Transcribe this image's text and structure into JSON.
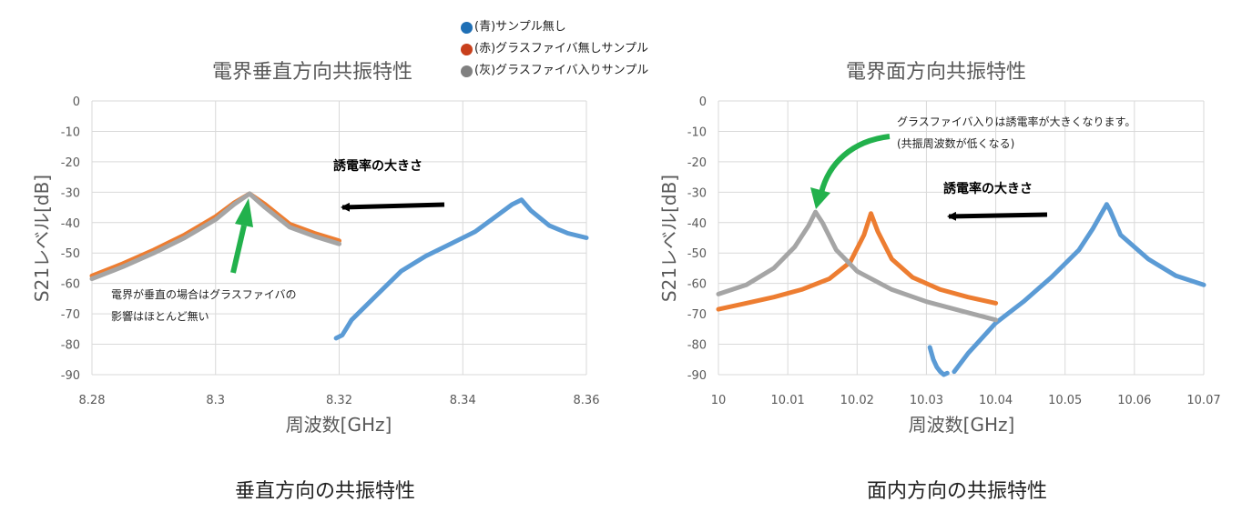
{
  "legend": [
    {
      "label": "(青)サンプル無し",
      "color": "#1f6fb5"
    },
    {
      "label": "(赤)グラスファイバ無しサンプル",
      "color": "#c8401c"
    },
    {
      "label": "(灰)グラスファイバ入りサンプル",
      "color": "#808080"
    }
  ],
  "captions": {
    "left": "垂直方向の共振特性",
    "right": "面内方向の共振特性"
  },
  "chart_data": [
    {
      "type": "line",
      "title": "電界垂直方向共振特性",
      "xlabel": "周波数[GHz]",
      "ylabel": "S21レベル[dB]",
      "xlim": [
        8.28,
        8.36
      ],
      "ylim": [
        -90,
        0
      ],
      "xticks": [
        8.28,
        8.3,
        8.32,
        8.34,
        8.36
      ],
      "xtick_labels": [
        "8.28",
        "8.3",
        "8.32",
        "8.34",
        "8.36"
      ],
      "yticks": [
        0,
        -10,
        -20,
        -30,
        -40,
        -50,
        -60,
        -70,
        -80,
        -90
      ],
      "ytick_labels": [
        "0",
        "-10",
        "-20",
        "-30",
        "-40",
        "-50",
        "-60",
        "-70",
        "-80",
        "-90"
      ],
      "grid": true,
      "series": [
        {
          "color": "#5b9bd5",
          "x": [
            8.3195,
            8.3205,
            8.322,
            8.326,
            8.33,
            8.334,
            8.338,
            8.342,
            8.346,
            8.348,
            8.3495,
            8.351,
            8.354,
            8.357,
            8.36
          ],
          "y": [
            -78,
            -77,
            -72,
            -64,
            -56,
            -51,
            -47,
            -43,
            -37,
            -34,
            -32.5,
            -36,
            -41,
            -43.5,
            -45
          ]
        },
        {
          "color": "#ed7d31",
          "x": [
            8.28,
            8.285,
            8.29,
            8.295,
            8.3,
            8.303,
            8.3055,
            8.308,
            8.312,
            8.316,
            8.32
          ],
          "y": [
            -57.5,
            -53.5,
            -49,
            -44,
            -38,
            -33.5,
            -30.5,
            -34,
            -40.5,
            -43.5,
            -46
          ]
        },
        {
          "color": "#a5a5a5",
          "x": [
            8.28,
            8.285,
            8.29,
            8.295,
            8.3,
            8.303,
            8.3055,
            8.308,
            8.312,
            8.316,
            8.32
          ],
          "y": [
            -58.5,
            -54.5,
            -50,
            -45,
            -39,
            -34,
            -30.5,
            -35,
            -41.5,
            -44.5,
            -47
          ]
        }
      ],
      "annotations": [
        {
          "text": "誘電率の大きさ"
        },
        {
          "text": "電界が垂直の場合はグラスファイバの"
        },
        {
          "text": "影響はほとんど無い"
        }
      ]
    },
    {
      "type": "line",
      "title": "電界面方向共振特性",
      "xlabel": "周波数[GHz]",
      "ylabel": "S21レベル[dB]",
      "xlim": [
        10,
        10.07
      ],
      "ylim": [
        -90,
        0
      ],
      "xticks": [
        10,
        10.01,
        10.02,
        10.03,
        10.04,
        10.05,
        10.06,
        10.07
      ],
      "xtick_labels": [
        "10",
        "10.01",
        "10.02",
        "10.03",
        "10.04",
        "10.05",
        "10.06",
        "10.07"
      ],
      "yticks": [
        0,
        -10,
        -20,
        -30,
        -40,
        -50,
        -60,
        -70,
        -80,
        -90
      ],
      "ytick_labels": [
        "0",
        "-10",
        "-20",
        "-30",
        "-40",
        "-50",
        "-60",
        "-70",
        "-80",
        "-90"
      ],
      "grid": true,
      "series": [
        {
          "color": "#5b9bd5",
          "x": [
            10.034,
            10.036,
            10.04,
            10.044,
            10.048,
            10.052,
            10.054,
            10.0555,
            10.056,
            10.0565,
            10.058,
            10.062,
            10.066,
            10.07
          ],
          "y": [
            -89,
            -83,
            -73,
            -66,
            -58,
            -49,
            -42,
            -36,
            -34,
            -36,
            -44,
            -52,
            -57.5,
            -60.5
          ]
        },
        {
          "color": "#5b9bd5",
          "x": [
            10.0305,
            10.031,
            10.0315,
            10.032,
            10.0325,
            10.033
          ],
          "y": [
            -81,
            -85,
            -87.5,
            -89,
            -90,
            -89.5
          ]
        },
        {
          "color": "#ed7d31",
          "x": [
            10,
            10.004,
            10.008,
            10.012,
            10.016,
            10.019,
            10.021,
            10.022,
            10.023,
            10.025,
            10.028,
            10.032,
            10.036,
            10.04
          ],
          "y": [
            -68.5,
            -66.5,
            -64.5,
            -62,
            -58.5,
            -53,
            -44,
            -37,
            -43,
            -52,
            -58,
            -62,
            -64.5,
            -66.5
          ]
        },
        {
          "color": "#a5a5a5",
          "x": [
            10,
            10.004,
            10.008,
            10.011,
            10.013,
            10.014,
            10.015,
            10.017,
            10.02,
            10.025,
            10.03,
            10.035,
            10.04
          ],
          "y": [
            -63.5,
            -60.5,
            -55,
            -48,
            -41,
            -36.5,
            -40,
            -49,
            -56,
            -62,
            -66,
            -69,
            -72
          ]
        }
      ],
      "annotations": [
        {
          "text": "グラスファイバ入りは誘電率が大きくなります。"
        },
        {
          "text": "(共振周波数が低くなる)"
        },
        {
          "text": "誘電率の大きさ"
        }
      ]
    }
  ]
}
